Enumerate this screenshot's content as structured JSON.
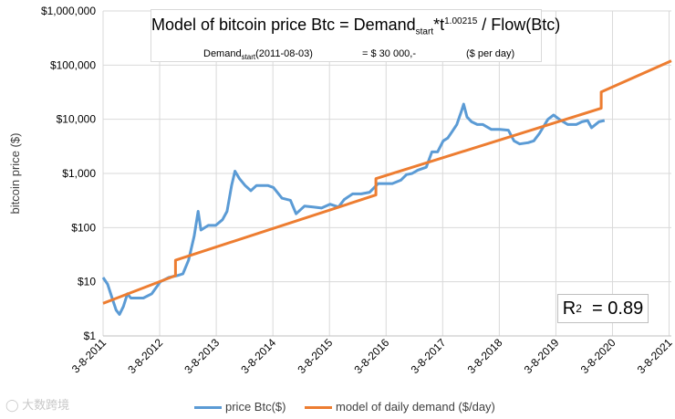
{
  "formula": {
    "prefix": "Model of bitcoin price Btc = Demand",
    "sub": "start",
    "mid": "*t",
    "sup": "1.00215",
    "suffix": " / Flow(Btc)",
    "row_label_prefix": "Demand",
    "row_label_sub": "start",
    "row_label_suffix": "(2011-08-03)",
    "row_value": "= $ 30 000,-",
    "row_unit": "($ per day)"
  },
  "r2": {
    "label": "R",
    "sup": "2",
    "value": "= 0.89"
  },
  "watermark": "大数跨境",
  "colors": {
    "price": "#5b9bd5",
    "model": "#ed7d31",
    "grid": "#d9d9d9",
    "axis": "#595959"
  },
  "chart_data": {
    "type": "line",
    "ylabel": "bitcoin price ($)",
    "y_scale": "log",
    "ylim": [
      1,
      1000000
    ],
    "y_ticks": [
      1,
      10,
      100,
      1000,
      10000,
      100000,
      1000000
    ],
    "y_tick_labels": [
      "$1",
      "$10",
      "$100",
      "$1,000",
      "$10,000",
      "$100,000",
      "$1,000,000"
    ],
    "xlim": [
      2011.59,
      2021.63
    ],
    "x_ticks": [
      2011.59,
      2012.59,
      2013.59,
      2014.59,
      2015.59,
      2016.59,
      2017.59,
      2018.59,
      2019.59,
      2020.59,
      2021.59
    ],
    "x_tick_labels": [
      "3-8-2011",
      "3-8-2012",
      "3-8-2013",
      "3-8-2014",
      "3-8-2015",
      "3-8-2016",
      "3-8-2017",
      "3-8-2018",
      "3-8-2019",
      "3-8-2020",
      "3-8-2021"
    ],
    "legend_position": "bottom",
    "series": [
      {
        "name": "price Btc($)",
        "color": "#5b9bd5",
        "points": [
          [
            2011.59,
            12
          ],
          [
            2011.67,
            9
          ],
          [
            2011.75,
            5
          ],
          [
            2011.82,
            3
          ],
          [
            2011.88,
            2.5
          ],
          [
            2011.95,
            3.5
          ],
          [
            2012.02,
            6
          ],
          [
            2012.08,
            5
          ],
          [
            2012.17,
            5
          ],
          [
            2012.3,
            5
          ],
          [
            2012.45,
            6
          ],
          [
            2012.6,
            10
          ],
          [
            2012.75,
            12
          ],
          [
            2012.9,
            13
          ],
          [
            2013.0,
            14
          ],
          [
            2013.1,
            25
          ],
          [
            2013.2,
            70
          ],
          [
            2013.27,
            200
          ],
          [
            2013.32,
            90
          ],
          [
            2013.45,
            110
          ],
          [
            2013.58,
            110
          ],
          [
            2013.7,
            140
          ],
          [
            2013.78,
            200
          ],
          [
            2013.86,
            600
          ],
          [
            2013.92,
            1100
          ],
          [
            2014.0,
            800
          ],
          [
            2014.1,
            600
          ],
          [
            2014.2,
            480
          ],
          [
            2014.3,
            600
          ],
          [
            2014.4,
            600
          ],
          [
            2014.5,
            600
          ],
          [
            2014.6,
            550
          ],
          [
            2014.75,
            350
          ],
          [
            2014.9,
            320
          ],
          [
            2015.0,
            180
          ],
          [
            2015.15,
            250
          ],
          [
            2015.3,
            240
          ],
          [
            2015.45,
            230
          ],
          [
            2015.6,
            270
          ],
          [
            2015.75,
            240
          ],
          [
            2015.85,
            330
          ],
          [
            2016.0,
            420
          ],
          [
            2016.15,
            420
          ],
          [
            2016.3,
            450
          ],
          [
            2016.45,
            650
          ],
          [
            2016.55,
            650
          ],
          [
            2016.7,
            650
          ],
          [
            2016.85,
            750
          ],
          [
            2016.95,
            950
          ],
          [
            2017.05,
            1000
          ],
          [
            2017.15,
            1150
          ],
          [
            2017.3,
            1300
          ],
          [
            2017.4,
            2500
          ],
          [
            2017.5,
            2500
          ],
          [
            2017.6,
            4000
          ],
          [
            2017.68,
            4500
          ],
          [
            2017.76,
            6000
          ],
          [
            2017.84,
            8000
          ],
          [
            2017.92,
            14000
          ],
          [
            2017.96,
            19000
          ],
          [
            2018.02,
            11000
          ],
          [
            2018.1,
            9000
          ],
          [
            2018.2,
            8000
          ],
          [
            2018.3,
            8000
          ],
          [
            2018.45,
            6500
          ],
          [
            2018.6,
            6500
          ],
          [
            2018.75,
            6300
          ],
          [
            2018.85,
            4000
          ],
          [
            2018.95,
            3500
          ],
          [
            2019.1,
            3700
          ],
          [
            2019.2,
            4000
          ],
          [
            2019.3,
            5500
          ],
          [
            2019.45,
            10000
          ],
          [
            2019.55,
            12000
          ],
          [
            2019.65,
            10000
          ],
          [
            2019.8,
            8000
          ],
          [
            2019.95,
            8000
          ],
          [
            2020.05,
            9000
          ],
          [
            2020.15,
            9500
          ],
          [
            2020.22,
            7000
          ],
          [
            2020.35,
            9000
          ],
          [
            2020.45,
            9500
          ]
        ]
      },
      {
        "name": "model of daily demand ($/day)",
        "color": "#ed7d31",
        "points": [
          [
            2011.59,
            4
          ],
          [
            2012.87,
            13
          ],
          [
            2012.87,
            25
          ],
          [
            2016.41,
            400
          ],
          [
            2016.41,
            800
          ],
          [
            2020.39,
            16000
          ],
          [
            2020.39,
            32000
          ],
          [
            2021.63,
            120000
          ]
        ]
      }
    ]
  }
}
